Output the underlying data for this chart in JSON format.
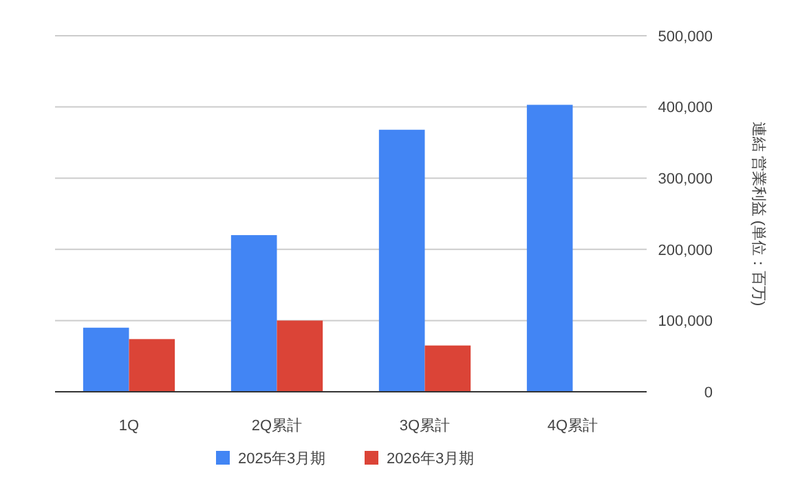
{
  "chart_data": {
    "type": "bar",
    "ylabel": "連結 営業利益 (単位：百万)",
    "categories": [
      "1Q",
      "2Q累計",
      "3Q累計",
      "4Q累計"
    ],
    "series": [
      {
        "name": "2025年3月期",
        "color": "#4285f4",
        "values": [
          90000,
          220000,
          368000,
          403000
        ]
      },
      {
        "name": "2026年3月期",
        "color": "#db4437",
        "values": [
          74000,
          100000,
          65000,
          null
        ]
      }
    ],
    "ylim": [
      0,
      500000
    ],
    "yticks": [
      {
        "value": 0,
        "label": "0"
      },
      {
        "value": 100000,
        "label": "100,000"
      },
      {
        "value": 200000,
        "label": "200,000"
      },
      {
        "value": 300000,
        "label": "300,000"
      },
      {
        "value": 400000,
        "label": "400,000"
      },
      {
        "value": 500000,
        "label": "500,000"
      }
    ],
    "grid": "y",
    "legend": "bottom"
  }
}
